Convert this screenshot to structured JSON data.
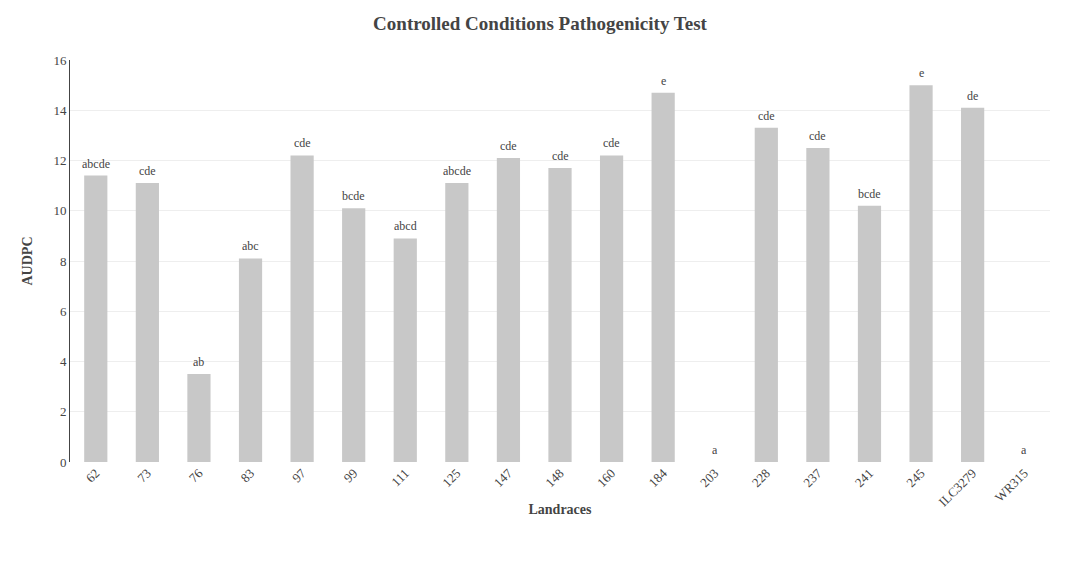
{
  "chart_data": {
    "type": "bar",
    "title": "Controlled Conditions Pathogenicity Test",
    "x_label": "Landraces",
    "y_label": "AUDPC",
    "categories": [
      "62",
      "73",
      "76",
      "83",
      "97",
      "99",
      "111",
      "125",
      "147",
      "148",
      "160",
      "184",
      "203",
      "228",
      "237",
      "241",
      "245",
      "ILC3279",
      "WR315"
    ],
    "values": [
      11.4,
      11.1,
      3.5,
      8.1,
      12.2,
      10.1,
      8.9,
      11.1,
      12.1,
      11.7,
      12.2,
      14.7,
      0.0,
      13.3,
      12.5,
      10.2,
      15.0,
      14.1,
      0.0
    ],
    "annotations": [
      "abcde",
      "cde",
      "ab",
      "abc",
      "cde",
      "bcde",
      "abcd",
      "abcde",
      "cde",
      "cde",
      "cde",
      "e",
      "a",
      "cde",
      "cde",
      "bcde",
      "e",
      "de",
      "a"
    ],
    "color": "#c8c8c8",
    "ylim": [
      0,
      16
    ],
    "yticks": [
      0,
      2,
      4,
      6,
      8,
      10,
      12,
      14,
      16
    ],
    "grid": true
  }
}
